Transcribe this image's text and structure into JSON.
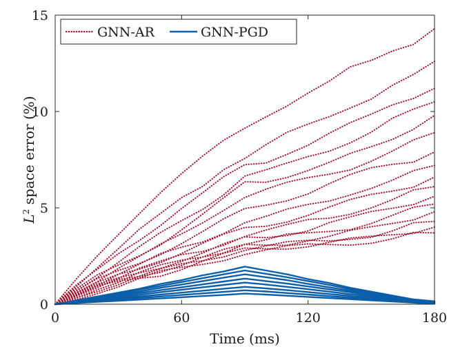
{
  "chart_data": {
    "type": "line",
    "xlabel": "Time (ms)",
    "ylabel_prefix": "L",
    "ylabel_sup": "2",
    "ylabel_rest": " space error (%)",
    "xlim": [
      0,
      180
    ],
    "ylim": [
      0,
      15
    ],
    "xticks": [
      0,
      60,
      120,
      180
    ],
    "yticks": [
      0,
      5,
      10,
      15
    ],
    "grid": false,
    "legend_position": "top-left",
    "series": [
      {
        "name": "GNN-AR",
        "color": "#a2142f",
        "style": "dotted",
        "x": [
          0,
          10,
          20,
          30,
          40,
          50,
          60,
          70,
          80,
          90,
          100,
          110,
          120,
          130,
          140,
          150,
          160,
          170,
          180
        ],
        "runs": [
          [
            0,
            1.2,
            2.4,
            3.6,
            4.8,
            5.9,
            6.8,
            7.6,
            8.4,
            9.1,
            9.8,
            10.4,
            11.0,
            11.5,
            12.2,
            12.6,
            13.2,
            13.6,
            14.3
          ],
          [
            0,
            1.0,
            2.0,
            2.9,
            3.8,
            4.6,
            5.5,
            6.2,
            7.1,
            7.6,
            8.2,
            8.8,
            9.3,
            9.8,
            10.3,
            10.7,
            11.3,
            11.8,
            12.6
          ],
          [
            0,
            0.9,
            1.7,
            2.6,
            3.4,
            4.2,
            5.0,
            5.7,
            6.5,
            7.2,
            7.4,
            7.9,
            8.3,
            8.8,
            9.3,
            9.8,
            10.4,
            10.8,
            11.2
          ],
          [
            0,
            0.8,
            1.5,
            2.2,
            2.9,
            3.6,
            4.3,
            5.0,
            5.8,
            6.7,
            6.9,
            7.2,
            7.6,
            8.0,
            8.5,
            9.0,
            9.6,
            10.0,
            10.5
          ],
          [
            0,
            0.7,
            1.4,
            2.0,
            2.6,
            3.2,
            3.9,
            4.6,
            5.4,
            6.3,
            6.4,
            6.7,
            7.0,
            7.3,
            7.7,
            8.1,
            8.6,
            9.2,
            9.8
          ],
          [
            0,
            0.7,
            1.3,
            1.9,
            2.4,
            3.0,
            3.6,
            4.3,
            5.0,
            5.6,
            5.9,
            6.2,
            6.5,
            6.8,
            7.1,
            7.5,
            7.9,
            8.4,
            8.9
          ],
          [
            0,
            0.6,
            1.2,
            1.7,
            2.2,
            2.7,
            3.2,
            3.7,
            4.3,
            4.9,
            5.2,
            5.5,
            5.8,
            6.2,
            6.6,
            7.0,
            7.3,
            7.5,
            7.9
          ],
          [
            0,
            0.6,
            1.1,
            1.6,
            2.0,
            2.5,
            2.9,
            3.3,
            3.8,
            4.3,
            4.5,
            4.8,
            5.1,
            5.4,
            5.8,
            6.1,
            6.4,
            6.8,
            7.2
          ],
          [
            0,
            0.5,
            1.0,
            1.5,
            1.9,
            2.3,
            2.7,
            3.1,
            3.5,
            3.9,
            4.1,
            4.4,
            4.7,
            5.0,
            5.3,
            5.6,
            5.9,
            6.2,
            6.6
          ],
          [
            0,
            0.5,
            1.0,
            1.4,
            1.8,
            2.1,
            2.5,
            2.8,
            3.2,
            3.6,
            3.8,
            4.0,
            4.3,
            4.5,
            4.8,
            5.1,
            5.4,
            5.8,
            6.1
          ],
          [
            0,
            0.5,
            0.9,
            1.3,
            1.7,
            2.0,
            2.3,
            2.6,
            3.0,
            3.4,
            3.5,
            3.7,
            3.9,
            4.2,
            4.4,
            4.7,
            5.0,
            5.3,
            5.6
          ],
          [
            0,
            0.4,
            0.9,
            1.2,
            1.6,
            1.9,
            2.2,
            2.5,
            2.8,
            3.2,
            3.3,
            3.5,
            3.6,
            3.8,
            4.0,
            4.3,
            4.6,
            4.9,
            5.2
          ],
          [
            0,
            0.4,
            0.8,
            1.2,
            1.5,
            1.8,
            2.1,
            2.4,
            2.7,
            3.0,
            3.1,
            3.2,
            3.4,
            3.5,
            3.7,
            3.9,
            4.2,
            4.5,
            4.8
          ],
          [
            0,
            0.4,
            0.8,
            1.1,
            1.4,
            1.7,
            2.0,
            2.3,
            2.6,
            2.9,
            3.0,
            3.1,
            3.2,
            3.3,
            3.5,
            3.6,
            3.8,
            4.1,
            4.3
          ],
          [
            0,
            0.4,
            0.8,
            1.1,
            1.4,
            1.6,
            1.9,
            2.2,
            2.5,
            2.8,
            2.9,
            3.0,
            3.1,
            3.2,
            3.3,
            3.4,
            3.6,
            3.8,
            4.0
          ],
          [
            0,
            0.3,
            0.7,
            1.0,
            1.3,
            1.6,
            1.8,
            2.1,
            2.4,
            2.7,
            2.8,
            2.9,
            3.0,
            3.1,
            3.2,
            3.3,
            3.4,
            3.6,
            3.7
          ]
        ]
      },
      {
        "name": "GNN-PGD",
        "color": "#0b5ea8",
        "style": "solid",
        "x": [
          0,
          10,
          20,
          30,
          40,
          50,
          60,
          70,
          80,
          90,
          100,
          110,
          120,
          130,
          140,
          150,
          160,
          170,
          180
        ],
        "runs": [
          [
            0,
            0.2,
            0.4,
            0.6,
            0.8,
            1.05,
            1.25,
            1.5,
            1.7,
            1.95,
            1.75,
            1.55,
            1.3,
            1.1,
            0.85,
            0.65,
            0.45,
            0.25,
            0.15
          ],
          [
            0,
            0.18,
            0.36,
            0.55,
            0.75,
            0.95,
            1.15,
            1.35,
            1.55,
            1.75,
            1.58,
            1.4,
            1.2,
            1.0,
            0.78,
            0.6,
            0.4,
            0.22,
            0.12
          ],
          [
            0,
            0.16,
            0.32,
            0.5,
            0.66,
            0.85,
            1.02,
            1.2,
            1.38,
            1.55,
            1.4,
            1.25,
            1.05,
            0.88,
            0.7,
            0.52,
            0.35,
            0.2,
            0.1
          ],
          [
            0,
            0.14,
            0.28,
            0.43,
            0.58,
            0.73,
            0.88,
            1.03,
            1.18,
            1.33,
            1.2,
            1.07,
            0.92,
            0.77,
            0.62,
            0.46,
            0.32,
            0.18,
            0.08
          ],
          [
            0,
            0.12,
            0.24,
            0.36,
            0.49,
            0.62,
            0.75,
            0.88,
            1.0,
            1.12,
            1.02,
            0.9,
            0.78,
            0.65,
            0.52,
            0.4,
            0.28,
            0.15,
            0.06
          ],
          [
            0,
            0.1,
            0.2,
            0.3,
            0.4,
            0.5,
            0.6,
            0.7,
            0.8,
            0.9,
            0.82,
            0.73,
            0.63,
            0.53,
            0.43,
            0.33,
            0.23,
            0.13,
            0.05
          ],
          [
            0,
            0.08,
            0.16,
            0.24,
            0.32,
            0.4,
            0.48,
            0.56,
            0.64,
            0.72,
            0.66,
            0.58,
            0.5,
            0.42,
            0.34,
            0.26,
            0.18,
            0.1,
            0.04
          ],
          [
            0,
            0.06,
            0.12,
            0.18,
            0.24,
            0.3,
            0.36,
            0.42,
            0.48,
            0.55,
            0.5,
            0.44,
            0.38,
            0.32,
            0.26,
            0.2,
            0.14,
            0.08,
            0.03
          ]
        ]
      }
    ]
  }
}
